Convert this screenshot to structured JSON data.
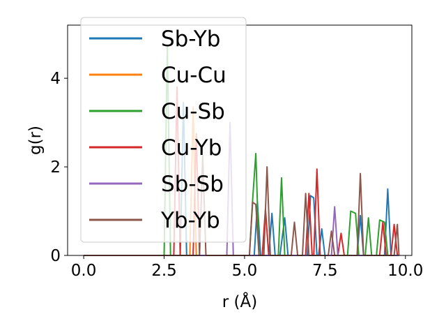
{
  "chart_data": {
    "type": "line",
    "title": "",
    "xlabel": "r (Å)",
    "ylabel": "g(r)",
    "xlim": [
      -0.5,
      10.2
    ],
    "ylim": [
      0,
      5.2
    ],
    "xticks": [
      "0.0",
      "2.5",
      "5.0",
      "7.5",
      "10.0"
    ],
    "xtick_values": [
      0,
      2.5,
      5,
      7.5,
      10
    ],
    "yticks": [
      "0",
      "2",
      "4"
    ],
    "ytick_values": [
      0,
      2,
      4
    ],
    "grid": false,
    "legend_position": "upper-left",
    "series": [
      {
        "name": "Sb-Yb",
        "color": "#1f77b4",
        "points": [
          [
            0,
            0
          ],
          [
            3.0,
            0
          ],
          [
            3.1,
            3.45
          ],
          [
            3.2,
            0
          ],
          [
            5.3,
            0
          ],
          [
            5.4,
            1.2
          ],
          [
            5.5,
            0
          ],
          [
            5.75,
            0
          ],
          [
            5.85,
            0.95
          ],
          [
            5.95,
            0
          ],
          [
            6.1,
            0
          ],
          [
            6.25,
            0.85
          ],
          [
            6.35,
            0
          ],
          [
            6.95,
            0
          ],
          [
            7.05,
            1.35
          ],
          [
            7.15,
            1.3
          ],
          [
            7.25,
            0
          ],
          [
            7.3,
            0
          ],
          [
            7.4,
            0.6
          ],
          [
            7.5,
            0
          ],
          [
            8.5,
            0
          ],
          [
            8.6,
            0.9
          ],
          [
            8.7,
            0
          ],
          [
            9.35,
            0
          ],
          [
            9.45,
            1.5
          ],
          [
            9.55,
            0
          ],
          [
            9.8,
            0
          ]
        ]
      },
      {
        "name": "Cu-Cu",
        "color": "#ff7f0e",
        "points": [
          [
            0,
            0
          ],
          [
            3.3,
            0
          ],
          [
            3.4,
            3.35
          ],
          [
            3.5,
            0
          ],
          [
            9.8,
            0
          ]
        ]
      },
      {
        "name": "Cu-Sb",
        "color": "#2ca02c",
        "points": [
          [
            0,
            0
          ],
          [
            2.5,
            0
          ],
          [
            2.6,
            4.75
          ],
          [
            2.7,
            0
          ],
          [
            5.15,
            0
          ],
          [
            5.25,
            1.25
          ],
          [
            5.35,
            2.3
          ],
          [
            5.45,
            0
          ],
          [
            6.05,
            0
          ],
          [
            6.15,
            1.75
          ],
          [
            6.25,
            0
          ],
          [
            8.2,
            0
          ],
          [
            8.3,
            1.0
          ],
          [
            8.45,
            0.95
          ],
          [
            8.55,
            0
          ],
          [
            8.75,
            0
          ],
          [
            8.85,
            0.85
          ],
          [
            8.95,
            0
          ],
          [
            9.1,
            0
          ],
          [
            9.2,
            0.8
          ],
          [
            9.35,
            0.75
          ],
          [
            9.45,
            0
          ],
          [
            9.8,
            0
          ]
        ]
      },
      {
        "name": "Cu-Yb",
        "color": "#d62728",
        "points": [
          [
            0,
            0
          ],
          [
            2.8,
            0
          ],
          [
            2.9,
            3.8
          ],
          [
            3.0,
            0
          ],
          [
            3.4,
            0
          ],
          [
            3.5,
            2.75
          ],
          [
            3.6,
            0
          ],
          [
            5.55,
            0
          ],
          [
            5.65,
            1.05
          ],
          [
            5.75,
            0
          ],
          [
            6.9,
            0
          ],
          [
            7.0,
            1.4
          ],
          [
            7.1,
            0
          ],
          [
            7.15,
            0
          ],
          [
            7.25,
            1.95
          ],
          [
            7.35,
            0
          ],
          [
            7.9,
            0
          ],
          [
            8.0,
            0.5
          ],
          [
            8.1,
            0
          ],
          [
            9.2,
            0
          ],
          [
            9.3,
            0.75
          ],
          [
            9.4,
            0
          ],
          [
            9.55,
            0
          ],
          [
            9.65,
            0.7
          ],
          [
            9.75,
            0
          ],
          [
            9.8,
            0
          ]
        ]
      },
      {
        "name": "Sb-Sb",
        "color": "#9467bd",
        "points": [
          [
            0,
            0
          ],
          [
            4.45,
            0
          ],
          [
            4.55,
            3.0
          ],
          [
            4.65,
            0
          ],
          [
            7.7,
            0
          ],
          [
            7.8,
            1.1
          ],
          [
            7.9,
            0
          ],
          [
            9.8,
            0
          ]
        ]
      },
      {
        "name": "Yb-Yb",
        "color": "#8c564b",
        "points": [
          [
            0,
            0
          ],
          [
            3.6,
            0
          ],
          [
            3.7,
            2.25
          ],
          [
            3.8,
            0
          ],
          [
            5.15,
            0
          ],
          [
            5.25,
            1.2
          ],
          [
            5.35,
            1.15
          ],
          [
            5.45,
            0
          ],
          [
            5.6,
            0
          ],
          [
            5.7,
            2.0
          ],
          [
            5.8,
            0
          ],
          [
            6.45,
            0
          ],
          [
            6.55,
            0.75
          ],
          [
            6.65,
            0
          ],
          [
            6.8,
            0
          ],
          [
            6.9,
            1.4
          ],
          [
            7.0,
            0
          ],
          [
            7.6,
            0
          ],
          [
            7.7,
            0.55
          ],
          [
            7.8,
            0
          ],
          [
            8.5,
            0
          ],
          [
            8.6,
            1.85
          ],
          [
            8.7,
            0
          ],
          [
            9.65,
            0
          ],
          [
            9.75,
            0.7
          ],
          [
            9.8,
            0
          ]
        ]
      }
    ]
  }
}
